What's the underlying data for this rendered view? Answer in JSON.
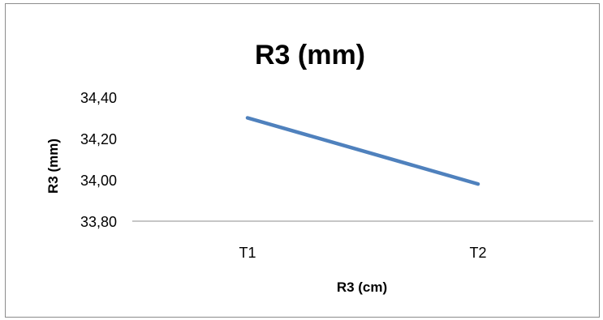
{
  "chart_data": {
    "type": "line",
    "title": "R3 (mm)",
    "xlabel": "R3 (cm)",
    "ylabel": "R3 (mm)",
    "categories": [
      "T1",
      "T2"
    ],
    "series": [
      {
        "values": [
          34.3,
          33.98
        ],
        "color": "#4f81bd"
      }
    ],
    "ylim": [
      33.8,
      34.4
    ],
    "yticks": [
      "33,80",
      "34,00",
      "34,20",
      "34,40"
    ],
    "ytick_values": [
      33.8,
      34.0,
      34.2,
      34.4
    ],
    "grid": false,
    "legend": "none"
  }
}
